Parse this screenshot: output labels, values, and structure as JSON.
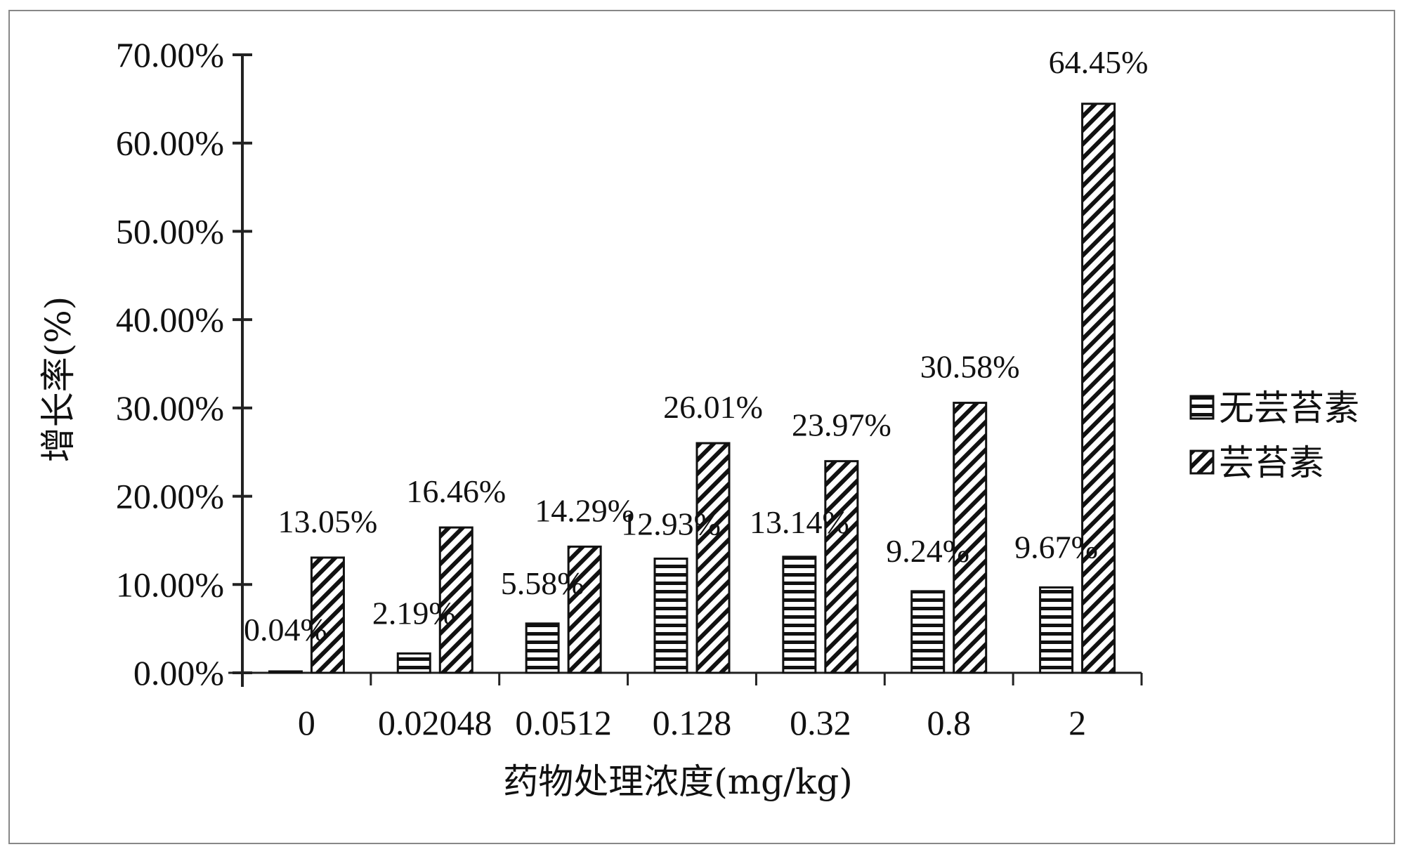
{
  "chart_data": {
    "type": "bar",
    "xlabel": "药物处理浓度(mg/kg)",
    "ylabel": "增长率(%)",
    "ylim": [
      0,
      70
    ],
    "yticks": [
      "0.00%",
      "10.00%",
      "20.00%",
      "30.00%",
      "40.00%",
      "50.00%",
      "60.00%",
      "70.00%"
    ],
    "categories": [
      "0",
      "0.02048",
      "0.0512",
      "0.128",
      "0.32",
      "0.8",
      "2"
    ],
    "series": [
      {
        "name": "无芸苔素",
        "values": [
          0.04,
          2.19,
          5.58,
          12.93,
          13.14,
          9.24,
          9.67
        ],
        "labels": [
          "0.04%",
          "2.19%",
          "5.58%",
          "12.93%",
          "13.14%",
          "9.24%",
          "9.67%"
        ],
        "pattern": "horizontal"
      },
      {
        "name": "芸苔素",
        "values": [
          13.05,
          16.46,
          14.29,
          26.01,
          23.97,
          30.58,
          64.45
        ],
        "labels": [
          "13.05%",
          "16.46%",
          "14.29%",
          "26.01%",
          "23.97%",
          "30.58%",
          "64.45%"
        ],
        "pattern": "diagonal"
      }
    ],
    "legend_position": "right",
    "grid": false,
    "colors": {
      "bar_fill": "#ffffff",
      "stroke": "#111111",
      "axis": "#222222"
    }
  }
}
